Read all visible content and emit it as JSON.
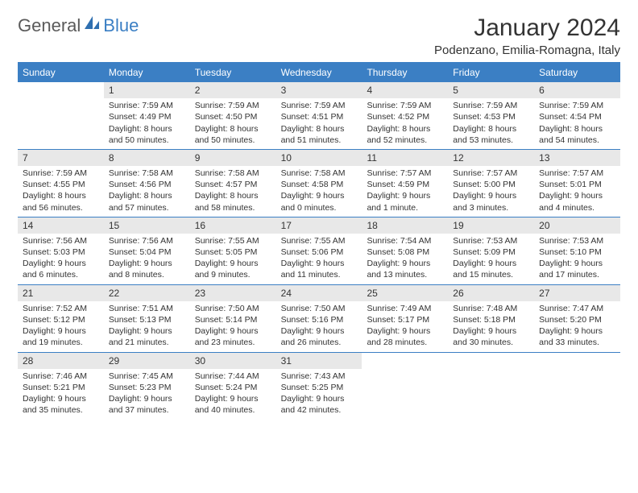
{
  "logo": {
    "text1": "General",
    "text2": "Blue"
  },
  "title": "January 2024",
  "location": "Podenzano, Emilia-Romagna, Italy",
  "colors": {
    "accent": "#3b7fc4",
    "dow_bg": "#3b7fc4",
    "dow_text": "#ffffff",
    "daynum_bg": "#e8e8e8",
    "text": "#333333",
    "background": "#ffffff"
  },
  "days_of_week": [
    "Sunday",
    "Monday",
    "Tuesday",
    "Wednesday",
    "Thursday",
    "Friday",
    "Saturday"
  ],
  "weeks": [
    [
      null,
      {
        "n": "1",
        "sr": "Sunrise: 7:59 AM",
        "ss": "Sunset: 4:49 PM",
        "d1": "Daylight: 8 hours",
        "d2": "and 50 minutes."
      },
      {
        "n": "2",
        "sr": "Sunrise: 7:59 AM",
        "ss": "Sunset: 4:50 PM",
        "d1": "Daylight: 8 hours",
        "d2": "and 50 minutes."
      },
      {
        "n": "3",
        "sr": "Sunrise: 7:59 AM",
        "ss": "Sunset: 4:51 PM",
        "d1": "Daylight: 8 hours",
        "d2": "and 51 minutes."
      },
      {
        "n": "4",
        "sr": "Sunrise: 7:59 AM",
        "ss": "Sunset: 4:52 PM",
        "d1": "Daylight: 8 hours",
        "d2": "and 52 minutes."
      },
      {
        "n": "5",
        "sr": "Sunrise: 7:59 AM",
        "ss": "Sunset: 4:53 PM",
        "d1": "Daylight: 8 hours",
        "d2": "and 53 minutes."
      },
      {
        "n": "6",
        "sr": "Sunrise: 7:59 AM",
        "ss": "Sunset: 4:54 PM",
        "d1": "Daylight: 8 hours",
        "d2": "and 54 minutes."
      }
    ],
    [
      {
        "n": "7",
        "sr": "Sunrise: 7:59 AM",
        "ss": "Sunset: 4:55 PM",
        "d1": "Daylight: 8 hours",
        "d2": "and 56 minutes."
      },
      {
        "n": "8",
        "sr": "Sunrise: 7:58 AM",
        "ss": "Sunset: 4:56 PM",
        "d1": "Daylight: 8 hours",
        "d2": "and 57 minutes."
      },
      {
        "n": "9",
        "sr": "Sunrise: 7:58 AM",
        "ss": "Sunset: 4:57 PM",
        "d1": "Daylight: 8 hours",
        "d2": "and 58 minutes."
      },
      {
        "n": "10",
        "sr": "Sunrise: 7:58 AM",
        "ss": "Sunset: 4:58 PM",
        "d1": "Daylight: 9 hours",
        "d2": "and 0 minutes."
      },
      {
        "n": "11",
        "sr": "Sunrise: 7:57 AM",
        "ss": "Sunset: 4:59 PM",
        "d1": "Daylight: 9 hours",
        "d2": "and 1 minute."
      },
      {
        "n": "12",
        "sr": "Sunrise: 7:57 AM",
        "ss": "Sunset: 5:00 PM",
        "d1": "Daylight: 9 hours",
        "d2": "and 3 minutes."
      },
      {
        "n": "13",
        "sr": "Sunrise: 7:57 AM",
        "ss": "Sunset: 5:01 PM",
        "d1": "Daylight: 9 hours",
        "d2": "and 4 minutes."
      }
    ],
    [
      {
        "n": "14",
        "sr": "Sunrise: 7:56 AM",
        "ss": "Sunset: 5:03 PM",
        "d1": "Daylight: 9 hours",
        "d2": "and 6 minutes."
      },
      {
        "n": "15",
        "sr": "Sunrise: 7:56 AM",
        "ss": "Sunset: 5:04 PM",
        "d1": "Daylight: 9 hours",
        "d2": "and 8 minutes."
      },
      {
        "n": "16",
        "sr": "Sunrise: 7:55 AM",
        "ss": "Sunset: 5:05 PM",
        "d1": "Daylight: 9 hours",
        "d2": "and 9 minutes."
      },
      {
        "n": "17",
        "sr": "Sunrise: 7:55 AM",
        "ss": "Sunset: 5:06 PM",
        "d1": "Daylight: 9 hours",
        "d2": "and 11 minutes."
      },
      {
        "n": "18",
        "sr": "Sunrise: 7:54 AM",
        "ss": "Sunset: 5:08 PM",
        "d1": "Daylight: 9 hours",
        "d2": "and 13 minutes."
      },
      {
        "n": "19",
        "sr": "Sunrise: 7:53 AM",
        "ss": "Sunset: 5:09 PM",
        "d1": "Daylight: 9 hours",
        "d2": "and 15 minutes."
      },
      {
        "n": "20",
        "sr": "Sunrise: 7:53 AM",
        "ss": "Sunset: 5:10 PM",
        "d1": "Daylight: 9 hours",
        "d2": "and 17 minutes."
      }
    ],
    [
      {
        "n": "21",
        "sr": "Sunrise: 7:52 AM",
        "ss": "Sunset: 5:12 PM",
        "d1": "Daylight: 9 hours",
        "d2": "and 19 minutes."
      },
      {
        "n": "22",
        "sr": "Sunrise: 7:51 AM",
        "ss": "Sunset: 5:13 PM",
        "d1": "Daylight: 9 hours",
        "d2": "and 21 minutes."
      },
      {
        "n": "23",
        "sr": "Sunrise: 7:50 AM",
        "ss": "Sunset: 5:14 PM",
        "d1": "Daylight: 9 hours",
        "d2": "and 23 minutes."
      },
      {
        "n": "24",
        "sr": "Sunrise: 7:50 AM",
        "ss": "Sunset: 5:16 PM",
        "d1": "Daylight: 9 hours",
        "d2": "and 26 minutes."
      },
      {
        "n": "25",
        "sr": "Sunrise: 7:49 AM",
        "ss": "Sunset: 5:17 PM",
        "d1": "Daylight: 9 hours",
        "d2": "and 28 minutes."
      },
      {
        "n": "26",
        "sr": "Sunrise: 7:48 AM",
        "ss": "Sunset: 5:18 PM",
        "d1": "Daylight: 9 hours",
        "d2": "and 30 minutes."
      },
      {
        "n": "27",
        "sr": "Sunrise: 7:47 AM",
        "ss": "Sunset: 5:20 PM",
        "d1": "Daylight: 9 hours",
        "d2": "and 33 minutes."
      }
    ],
    [
      {
        "n": "28",
        "sr": "Sunrise: 7:46 AM",
        "ss": "Sunset: 5:21 PM",
        "d1": "Daylight: 9 hours",
        "d2": "and 35 minutes."
      },
      {
        "n": "29",
        "sr": "Sunrise: 7:45 AM",
        "ss": "Sunset: 5:23 PM",
        "d1": "Daylight: 9 hours",
        "d2": "and 37 minutes."
      },
      {
        "n": "30",
        "sr": "Sunrise: 7:44 AM",
        "ss": "Sunset: 5:24 PM",
        "d1": "Daylight: 9 hours",
        "d2": "and 40 minutes."
      },
      {
        "n": "31",
        "sr": "Sunrise: 7:43 AM",
        "ss": "Sunset: 5:25 PM",
        "d1": "Daylight: 9 hours",
        "d2": "and 42 minutes."
      },
      null,
      null,
      null
    ]
  ]
}
